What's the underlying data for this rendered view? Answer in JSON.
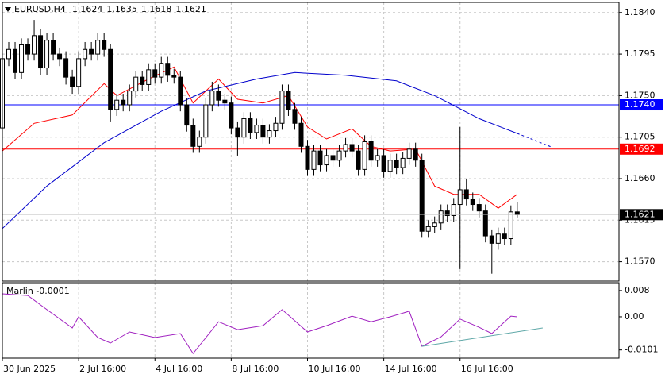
{
  "chart_data": [
    {
      "type": "candlestick",
      "title": "EURUSD,H4",
      "x": [
        0,
        1,
        2,
        3,
        4,
        5,
        6,
        7,
        8,
        9,
        10,
        11,
        12,
        13,
        14,
        15,
        16,
        17,
        18,
        19,
        20,
        21,
        22,
        23,
        24,
        25,
        26,
        27,
        28,
        29,
        30,
        31,
        32,
        33,
        34,
        35,
        36,
        37,
        38,
        39,
        40,
        41,
        42,
        43,
        44,
        45,
        46,
        47,
        48,
        49,
        50,
        51,
        52,
        53,
        54,
        55,
        56,
        57,
        58,
        59,
        60,
        61,
        62,
        63,
        64,
        65,
        66,
        67,
        68,
        69,
        70,
        71,
        72,
        73,
        74,
        75,
        76,
        77,
        78,
        79,
        80,
        81
      ],
      "open": [
        1.1715,
        1.179,
        1.18,
        1.1775,
        1.1805,
        1.1795,
        1.1815,
        1.178,
        1.181,
        1.1795,
        1.179,
        1.177,
        1.176,
        1.179,
        1.18,
        1.1795,
        1.181,
        1.18,
        1.1735,
        1.1745,
        1.174,
        1.1755,
        1.177,
        1.1762,
        1.1778,
        1.177,
        1.1785,
        1.1772,
        1.177,
        1.174,
        1.1718,
        1.1695,
        1.1705,
        1.174,
        1.1755,
        1.1745,
        1.1742,
        1.1715,
        1.1705,
        1.1725,
        1.171,
        1.1718,
        1.1705,
        1.1712,
        1.172,
        1.1755,
        1.1735,
        1.172,
        1.1695,
        1.167,
        1.169,
        1.1675,
        1.1685,
        1.168,
        1.169,
        1.1697,
        1.169,
        1.167,
        1.17,
        1.168,
        1.1685,
        1.1668,
        1.168,
        1.1672,
        1.1682,
        1.1692,
        1.168,
        1.1603,
        1.1608,
        1.1612,
        1.1625,
        1.162,
        1.1632,
        1.1648,
        1.1638,
        1.1632,
        1.1625,
        1.1598,
        1.159,
        1.16,
        1.1595,
        1.1624
      ],
      "high": [
        1.1798,
        1.1808,
        1.1808,
        1.1812,
        1.1812,
        1.1832,
        1.1822,
        1.1818,
        1.1818,
        1.1802,
        1.1798,
        1.1778,
        1.1798,
        1.1808,
        1.1808,
        1.1818,
        1.1818,
        1.1806,
        1.1752,
        1.1752,
        1.1762,
        1.1777,
        1.1777,
        1.1785,
        1.1785,
        1.1792,
        1.1792,
        1.1779,
        1.1777,
        1.1747,
        1.1725,
        1.1712,
        1.1747,
        1.1765,
        1.1762,
        1.1752,
        1.1749,
        1.1722,
        1.1732,
        1.1732,
        1.1725,
        1.1725,
        1.1719,
        1.1727,
        1.1762,
        1.1762,
        1.1742,
        1.1727,
        1.1702,
        1.1697,
        1.1697,
        1.1692,
        1.1692,
        1.1697,
        1.1704,
        1.1704,
        1.1697,
        1.1707,
        1.1707,
        1.1692,
        1.1692,
        1.1687,
        1.1687,
        1.1689,
        1.1699,
        1.1699,
        1.1687,
        1.1615,
        1.1619,
        1.1632,
        1.1632,
        1.1639,
        1.1716,
        1.166,
        1.1645,
        1.1639,
        1.1632,
        1.1605,
        1.1607,
        1.1607,
        1.1631,
        1.1635
      ],
      "low": [
        1.1708,
        1.1782,
        1.1768,
        1.1768,
        1.1788,
        1.1788,
        1.1772,
        1.1772,
        1.1788,
        1.1782,
        1.1762,
        1.1752,
        1.1752,
        1.1782,
        1.1788,
        1.1788,
        1.1792,
        1.1722,
        1.1728,
        1.1733,
        1.1733,
        1.1748,
        1.1755,
        1.1755,
        1.1763,
        1.1763,
        1.1765,
        1.1763,
        1.1733,
        1.1711,
        1.1688,
        1.1688,
        1.1698,
        1.1733,
        1.1738,
        1.1735,
        1.1708,
        1.1685,
        1.1698,
        1.1703,
        1.1703,
        1.1698,
        1.1698,
        1.1705,
        1.1713,
        1.1728,
        1.1713,
        1.1688,
        1.1663,
        1.1663,
        1.1668,
        1.1668,
        1.1673,
        1.1673,
        1.1683,
        1.1683,
        1.1663,
        1.1663,
        1.1673,
        1.1673,
        1.1661,
        1.1661,
        1.1665,
        1.1665,
        1.1675,
        1.1673,
        1.1596,
        1.1596,
        1.1601,
        1.1605,
        1.1613,
        1.1613,
        1.1562,
        1.1631,
        1.1625,
        1.1618,
        1.1591,
        1.1557,
        1.1583,
        1.1588,
        1.1588,
        1.1618
      ],
      "close": [
        1.179,
        1.18,
        1.1775,
        1.1805,
        1.1795,
        1.1815,
        1.178,
        1.181,
        1.1795,
        1.179,
        1.177,
        1.176,
        1.179,
        1.18,
        1.1795,
        1.181,
        1.18,
        1.1735,
        1.1745,
        1.174,
        1.1755,
        1.177,
        1.1762,
        1.1778,
        1.177,
        1.1785,
        1.1772,
        1.177,
        1.174,
        1.1718,
        1.1695,
        1.1705,
        1.174,
        1.1755,
        1.1745,
        1.1742,
        1.1715,
        1.1705,
        1.1725,
        1.171,
        1.1718,
        1.1705,
        1.1712,
        1.172,
        1.1755,
        1.1735,
        1.172,
        1.1695,
        1.167,
        1.169,
        1.1675,
        1.1685,
        1.168,
        1.169,
        1.1697,
        1.169,
        1.167,
        1.17,
        1.168,
        1.1685,
        1.1668,
        1.168,
        1.1672,
        1.1682,
        1.1692,
        1.168,
        1.1603,
        1.1608,
        1.1612,
        1.1625,
        1.162,
        1.1632,
        1.1648,
        1.1638,
        1.1632,
        1.1625,
        1.1598,
        1.159,
        1.16,
        1.1595,
        1.1624,
        1.1621
      ],
      "up_color": "#ffffff",
      "down_color": "#000000",
      "xlim": [
        0,
        97
      ],
      "xticks": [
        {
          "value": 0,
          "label": "30 Jun 2025"
        },
        {
          "value": 12,
          "label": "2 Jul 16:00"
        },
        {
          "value": 24,
          "label": "4 Jul 16:00"
        },
        {
          "value": 36,
          "label": "8 Jul 16:00"
        },
        {
          "value": 48,
          "label": "10 Jul 16:00"
        },
        {
          "value": 60,
          "label": "14 Jul 16:00"
        },
        {
          "value": 72,
          "label": "16 Jul 16:00"
        }
      ],
      "ylim": [
        1.1549,
        1.1851
      ],
      "yticks": [
        {
          "value": 1.184,
          "label": "1.1840"
        },
        1.1795,
        {
          "value": 1.175,
          "label": "1.1750"
        },
        1.1705,
        {
          "value": 1.166,
          "label": "1.1660"
        },
        1.1615,
        {
          "value": 1.157,
          "label": "1.1570"
        }
      ],
      "grid": true,
      "overlays": [
        {
          "color": "#ff0000",
          "x": [
            0,
            5,
            11,
            16,
            18,
            23,
            27,
            30,
            34,
            37,
            41,
            45,
            48,
            51,
            55,
            58,
            61,
            65,
            68,
            71,
            75,
            78,
            81
          ],
          "values": [
            1.169,
            1.172,
            1.1729,
            1.1763,
            1.175,
            1.1768,
            1.1781,
            1.1742,
            1.1768,
            1.1746,
            1.1742,
            1.175,
            1.1716,
            1.1703,
            1.1714,
            1.1695,
            1.169,
            1.1692,
            1.1652,
            1.1643,
            1.1643,
            1.1628,
            1.1643
          ]
        },
        {
          "color": "#0000cc",
          "x": [
            0,
            7,
            16,
            25,
            32,
            40,
            46,
            54,
            62,
            68,
            75,
            81
          ],
          "values": [
            1.1606,
            1.1652,
            1.1699,
            1.1733,
            1.1755,
            1.1768,
            1.1775,
            1.1772,
            1.1766,
            1.175,
            1.1725,
            1.1709
          ]
        },
        {
          "color": "#0000cc",
          "x": [
            81,
            86.5
          ],
          "values": [
            1.1709,
            1.1694
          ],
          "dash": true
        }
      ],
      "hlines": [
        {
          "value": 1.174,
          "label": "1.1740",
          "color": "#0000ff"
        },
        {
          "value": 1.1692,
          "label": "1.1692",
          "color": "#ff0000"
        }
      ]
    },
    {
      "type": "line",
      "title": "Marlin -0.0001",
      "series": [
        {
          "color": "#a020c0",
          "x": [
            0,
            4,
            7,
            11,
            12,
            15,
            17,
            20,
            24,
            28,
            30,
            34,
            37,
            41,
            44,
            48,
            51,
            55,
            58,
            61,
            64,
            66,
            69,
            72,
            75,
            77,
            80,
            81
          ],
          "values": [
            0.007,
            0.0065,
            0.0022,
            -0.0034,
            0,
            -0.0063,
            -0.008,
            -0.0046,
            -0.0063,
            -0.0051,
            -0.0112,
            -0.0015,
            -0.0039,
            -0.0027,
            0.0022,
            -0.0046,
            -0.0027,
            0.0002,
            -0.0015,
            0,
            0.0017,
            -0.009,
            -0.0061,
            -0.0007,
            -0.0032,
            -0.0051,
            0.0002,
            0
          ]
        },
        {
          "color": "#5fa8a8",
          "x": [
            66,
            85
          ],
          "values": [
            -0.009,
            -0.0034
          ]
        }
      ],
      "xlim": [
        0,
        97
      ],
      "ylim": [
        -0.0126,
        0.0104
      ],
      "yticks": [
        0.008,
        {
          "value": 0,
          "label": "0.00"
        },
        -0.0101
      ]
    }
  ]
}
